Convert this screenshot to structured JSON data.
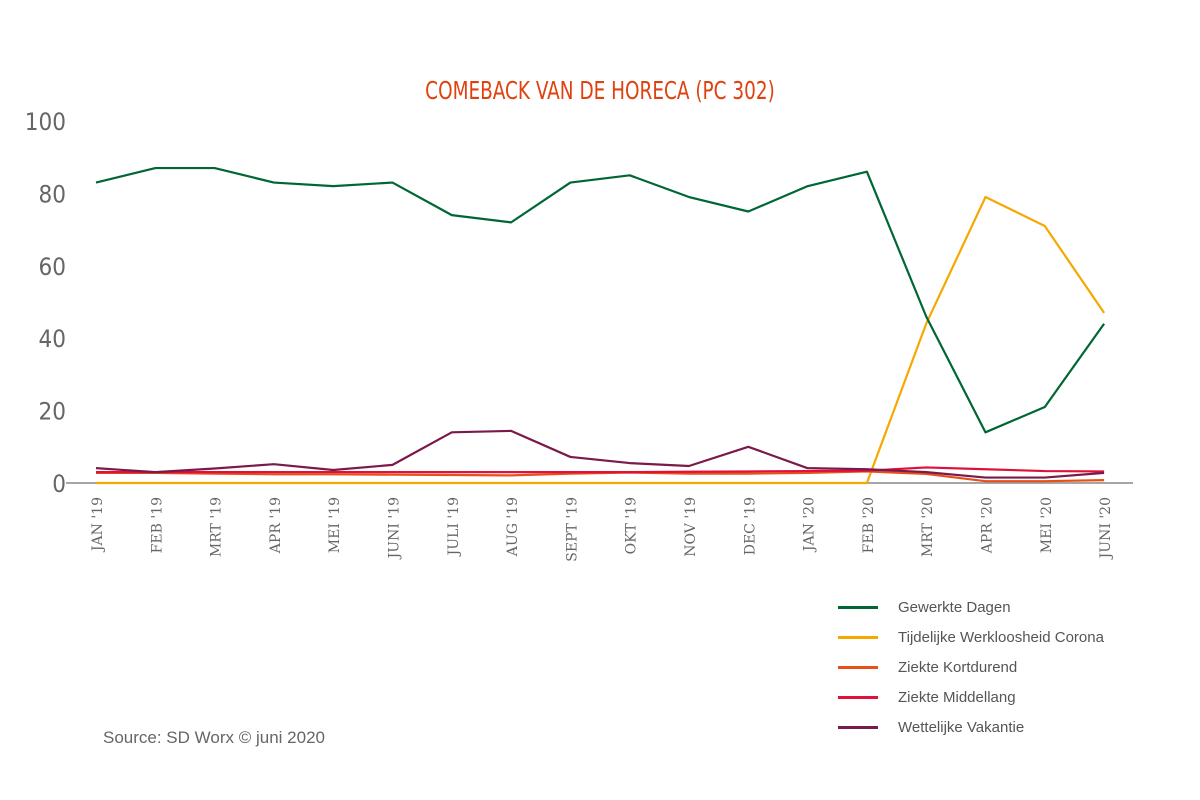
{
  "chart_data": {
    "type": "line",
    "title": "COMEBACK VAN DE HORECA (PC 302)",
    "xlabel": "",
    "ylabel": "",
    "ylim": [
      0,
      100
    ],
    "yticks": [
      "0",
      "20",
      "40",
      "60",
      "80",
      "100"
    ],
    "categories": [
      "JAN '19",
      "FEB '19",
      "MRT '19",
      "APR '19",
      "MEI '19",
      "JUNI '19",
      "JULI '19",
      "AUG '19",
      "SEPT '19",
      "OKT '19",
      "NOV '19",
      "DEC '19",
      "JAN '20",
      "FEB '20",
      "MRT '20",
      "APR '20",
      "MEI '20",
      "JUNI '20"
    ],
    "series": [
      {
        "name": "Gewerkte Dagen",
        "color": "#006633",
        "values": [
          83,
          87,
          87,
          83,
          82,
          83,
          74,
          72,
          83,
          85,
          79,
          75,
          82,
          86,
          46,
          14,
          21,
          44
        ]
      },
      {
        "name": "Tijdelijke Werkloosheid Corona",
        "color": "#f5a800",
        "values": [
          0,
          0,
          0,
          0,
          0,
          0,
          0,
          0,
          0,
          0,
          0,
          0,
          0,
          0,
          44,
          79,
          71,
          47
        ]
      },
      {
        "name": "Ziekte Kortdurend",
        "color": "#e8501a",
        "values": [
          2.8,
          2.8,
          2.6,
          2.4,
          2.4,
          2.3,
          2.2,
          2.1,
          2.6,
          2.9,
          2.6,
          2.6,
          2.8,
          3.2,
          2.5,
          0.5,
          0.5,
          0.8
        ]
      },
      {
        "name": "Ziekte Middellang",
        "color": "#e0103a",
        "values": [
          3,
          3,
          3,
          3,
          3,
          3,
          3,
          3,
          3,
          3,
          3.1,
          3.2,
          3.3,
          3.4,
          4.3,
          3.8,
          3.3,
          3.2
        ]
      },
      {
        "name": "Wettelijke Vakantie",
        "color": "#7a1a4a",
        "values": [
          4.1,
          3,
          4,
          5.2,
          3.6,
          5,
          14,
          14.4,
          7.2,
          5.5,
          4.7,
          10,
          4.1,
          3.8,
          3,
          1.5,
          1.5,
          2.8
        ]
      }
    ],
    "legend": "bottom-right",
    "grid": false
  },
  "source": "Source: SD Worx © juni 2020"
}
